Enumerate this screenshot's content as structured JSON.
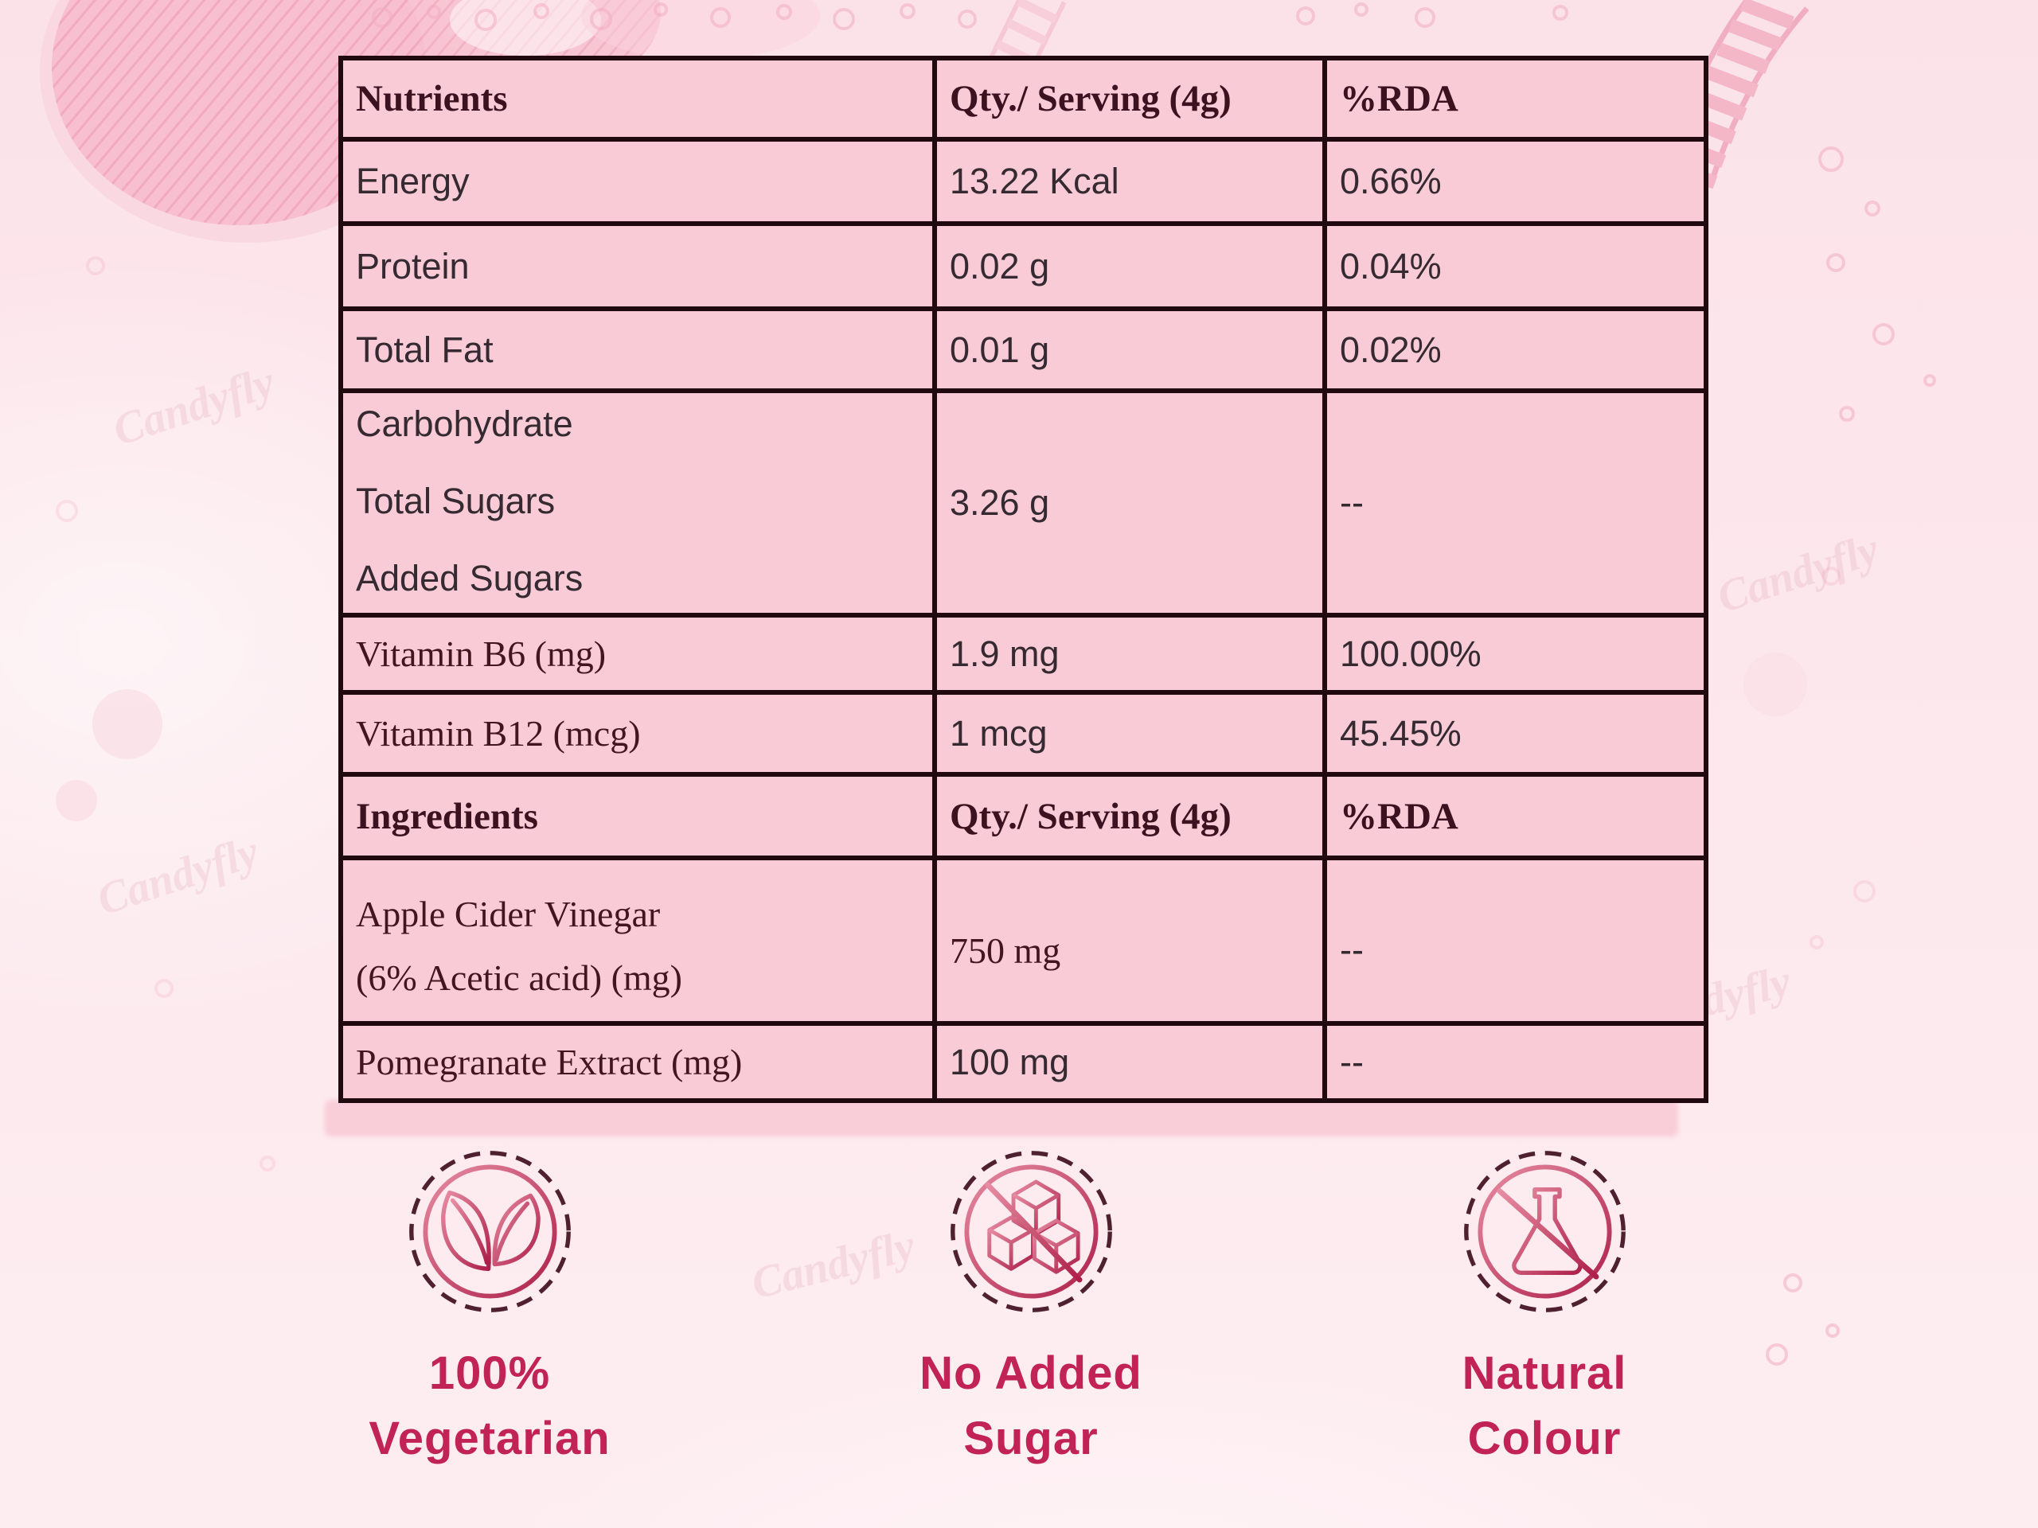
{
  "table": {
    "header": [
      "Nutrients",
      "Qty./ Serving (4g)",
      "%RDA"
    ],
    "nutrient_rows": [
      {
        "label": "Energy",
        "qty": "13.22 Kcal",
        "rda": "0.66%"
      },
      {
        "label": "Protein",
        "qty": "0.02 g",
        "rda": "0.04%"
      },
      {
        "label": "Total Fat",
        "qty": "0.01 g",
        "rda": "0.02%"
      },
      {
        "label_lines": [
          "Carbohydrate",
          "Total Sugars",
          "Added Sugars"
        ],
        "qty": "3.26 g",
        "rda": "--"
      },
      {
        "label": "Vitamin B6 (mg)",
        "qty": "1.9 mg",
        "rda": "100.00%"
      },
      {
        "label": "Vitamin B12 (mcg)",
        "qty": "1 mcg",
        "rda": "45.45%"
      }
    ],
    "ingredients_header": [
      "Ingredients",
      "Qty./ Serving (4g)",
      "%RDA"
    ],
    "ingredient_rows": [
      {
        "label_lines": [
          "Apple Cider Vinegar",
          "(6% Acetic acid) (mg)"
        ],
        "qty": "750 mg",
        "rda": "--"
      },
      {
        "label": "Pomegranate Extract (mg)",
        "qty": "100 mg",
        "rda": "--"
      }
    ]
  },
  "badges": [
    {
      "icon": "leaves-icon",
      "label_lines": [
        "100%",
        "Vegetarian"
      ]
    },
    {
      "icon": "no-added-sugar-icon",
      "label_lines": [
        "No Added",
        "Sugar"
      ]
    },
    {
      "icon": "natural-colour-icon",
      "label_lines": [
        "Natural",
        "Colour"
      ]
    }
  ],
  "decor": {
    "watermark": "Candyfly"
  },
  "colors": {
    "cell_pink": "#f8cbd6",
    "border_dark": "#20090f",
    "accent_crimson": "#c22357",
    "icon_crimson": "#bb2c52",
    "background_pink": "#fbe2e9"
  }
}
